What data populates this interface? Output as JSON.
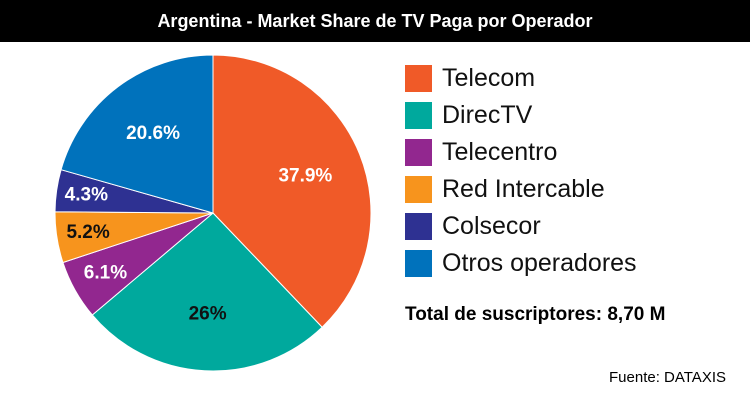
{
  "chart_data": {
    "type": "pie",
    "title": "Argentina - Market Share de TV Paga por Operador",
    "slices": [
      {
        "name": "Telecom",
        "value": 37.9,
        "label": "37.9%",
        "color": "#f05a28",
        "label_color": "#ffffff"
      },
      {
        "name": "DirecTV",
        "value": 26.0,
        "label": "26%",
        "color": "#00a99d",
        "label_color": "#111111"
      },
      {
        "name": "Telecentro",
        "value": 6.1,
        "label": "6.1%",
        "color": "#92278f",
        "label_color": "#ffffff"
      },
      {
        "name": "Red Intercable",
        "value": 5.2,
        "label": "5.2%",
        "color": "#f7941d",
        "label_color": "#111111"
      },
      {
        "name": "Colsecor",
        "value": 4.3,
        "label": "4.3%",
        "color": "#2e3192",
        "label_color": "#ffffff"
      },
      {
        "name": "Otros operadores",
        "value": 20.6,
        "label": "20.6%",
        "color": "#0072bc",
        "label_color": "#ffffff"
      }
    ],
    "start_angle": "12 o'clock",
    "direction": "clockwise",
    "legend_position": "right"
  },
  "total_text": "Total de suscriptores: 8,70 M",
  "source_text": "Fuente: DATAXIS"
}
